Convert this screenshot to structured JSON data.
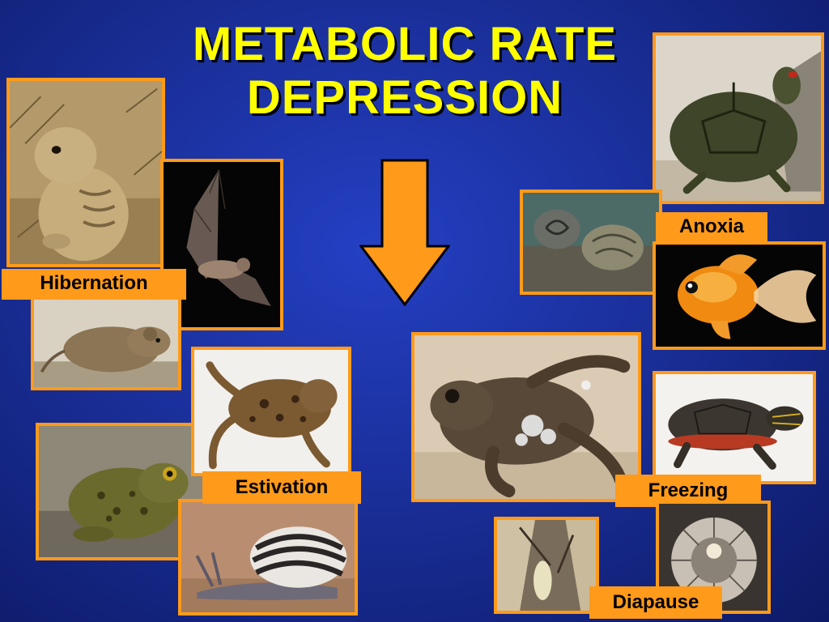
{
  "slide": {
    "title_line1": "METABOLIC RATE",
    "title_line2": "DEPRESSION"
  },
  "labels": {
    "hibernation": "Hibernation",
    "estivation": "Estivation",
    "anoxia": "Anoxia",
    "freezing": "Freezing",
    "diapause": "Diapause"
  },
  "colors": {
    "title": "#ffff00",
    "frame": "#ff9a1a",
    "arrow": "#ff9a1a",
    "background": "#1a2f9a"
  },
  "photos": [
    "ground-squirrel-photo",
    "bat-photo",
    "mouse-photo",
    "spadefoot-toad-photo",
    "clawed-frog-photo",
    "snail-photo",
    "turtle-photo",
    "periwinkle-snails-photo",
    "goldfish-photo",
    "wood-frog-photo",
    "painted-turtle-photo",
    "insect-larva-photo",
    "gall-larva-photo"
  ]
}
